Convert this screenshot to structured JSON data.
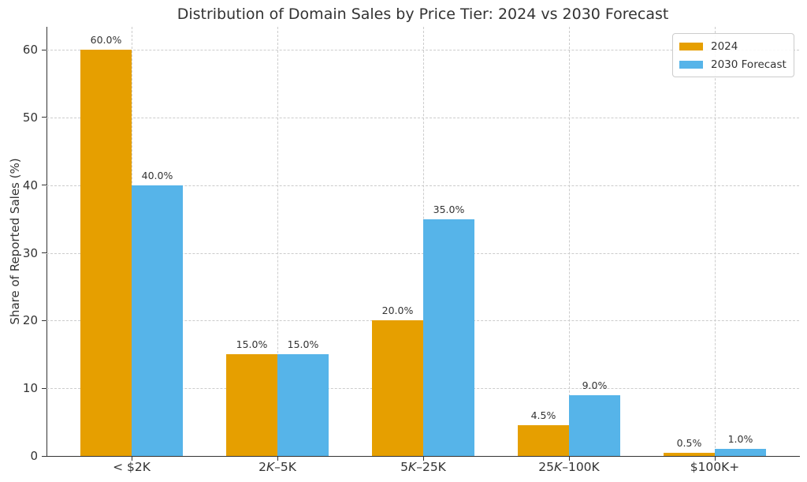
{
  "chart_data": {
    "type": "bar",
    "title": "Distribution of Domain Sales by Price Tier: 2024 vs 2030 Forecast",
    "xlabel": "",
    "ylabel": "Share of Reported Sales (%)",
    "categories": [
      "< $2K",
      "2K–5K",
      "5K–25K",
      "25K–100K",
      "$100K+"
    ],
    "categories_rich": [
      [
        {
          "t": "< $2K",
          "i": false
        }
      ],
      [
        {
          "t": "2",
          "i": false
        },
        {
          "t": "K",
          "i": true
        },
        {
          "t": "–5K",
          "i": false
        }
      ],
      [
        {
          "t": "5",
          "i": false
        },
        {
          "t": "K",
          "i": true
        },
        {
          "t": "–25K",
          "i": false
        }
      ],
      [
        {
          "t": "25",
          "i": false
        },
        {
          "t": "K",
          "i": true
        },
        {
          "t": "–100K",
          "i": false
        }
      ],
      [
        {
          "t": "$100K+",
          "i": false
        }
      ]
    ],
    "series": [
      {
        "name": "2024",
        "color": "#E69F00",
        "values": [
          60.0,
          15.0,
          20.0,
          4.5,
          0.5
        ],
        "value_labels": [
          "60.0%",
          "15.0%",
          "20.0%",
          "4.5%",
          "0.5%"
        ]
      },
      {
        "name": "2030 Forecast",
        "color": "#56B4E9",
        "values": [
          40.0,
          15.0,
          35.0,
          9.0,
          1.0
        ],
        "value_labels": [
          "40.0%",
          "15.0%",
          "35.0%",
          "9.0%",
          "1.0%"
        ]
      }
    ],
    "yticks": [
      0,
      10,
      20,
      30,
      40,
      50,
      60
    ],
    "ylim": [
      0,
      63.4
    ],
    "grid": true,
    "grid_style": "dashed",
    "legend_position": "upper right"
  },
  "colors": {
    "background": "#ffffff",
    "grid": "#cccccc",
    "spine": "#333333",
    "text": "#333333",
    "series_2024": "#E69F00",
    "series_2030": "#56B4E9"
  }
}
